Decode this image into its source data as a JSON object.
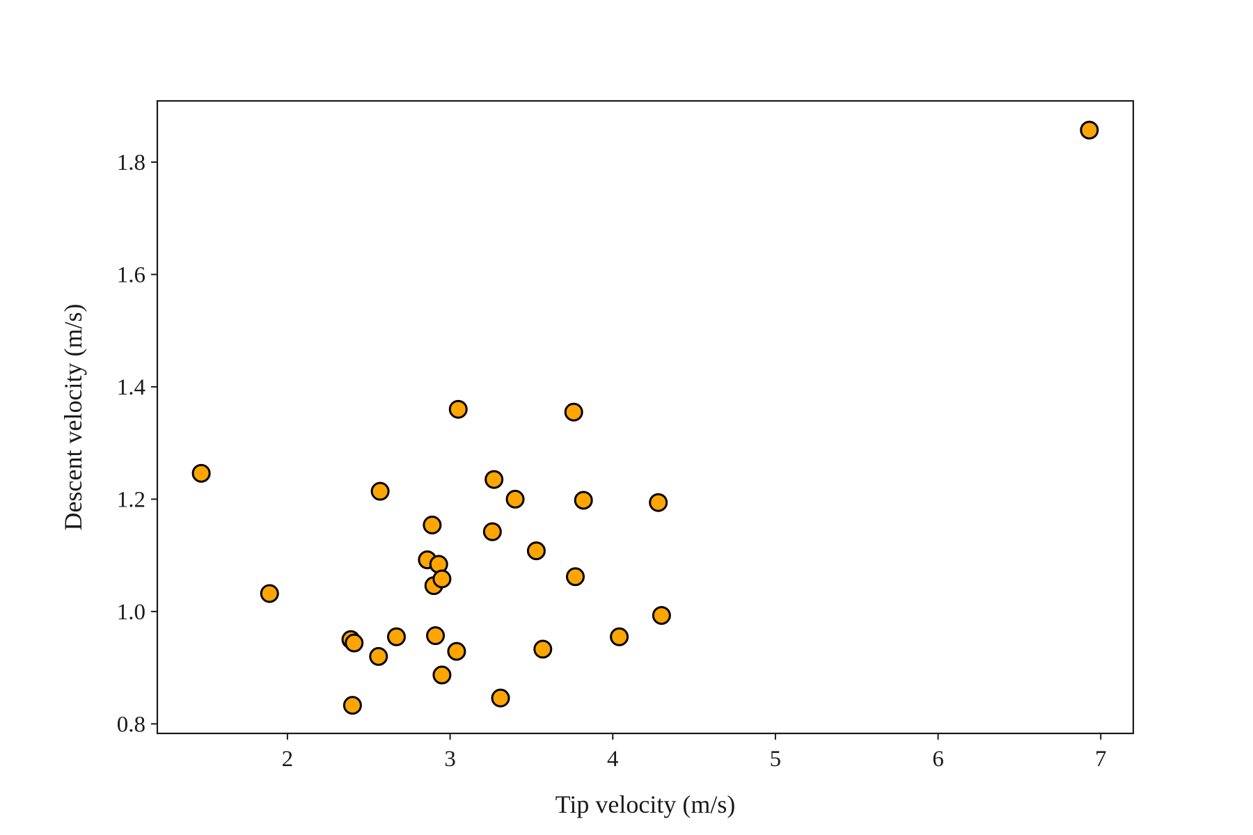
{
  "chart_data": {
    "type": "scatter",
    "title": "",
    "xlabel": "Tip velocity (m/s)",
    "ylabel": "Descent velocity (m/s)",
    "xlim": [
      1.2,
      7.2
    ],
    "ylim": [
      0.783,
      1.909
    ],
    "xticks": [
      2,
      3,
      4,
      5,
      6,
      7
    ],
    "xtick_labels": [
      "2",
      "3",
      "4",
      "5",
      "6",
      "7"
    ],
    "yticks": [
      0.8,
      1.0,
      1.2,
      1.4,
      1.6,
      1.8
    ],
    "ytick_labels": [
      "0.8",
      "1.0",
      "1.2",
      "1.4",
      "1.6",
      "1.8"
    ],
    "grid": false,
    "marker_color": "#FFA500",
    "marker_edge_color": "#000000",
    "series": [
      {
        "x": [
          1.47,
          1.89,
          2.39,
          2.4,
          2.41,
          2.56,
          2.57,
          2.67,
          2.86,
          2.89,
          2.9,
          2.91,
          2.93,
          2.95,
          2.95,
          3.04,
          3.05,
          3.26,
          3.27,
          3.31,
          3.4,
          3.53,
          3.57,
          3.76,
          3.77,
          3.82,
          4.04,
          4.28,
          4.3,
          6.93
        ],
        "y": [
          1.246,
          1.032,
          0.95,
          0.833,
          0.944,
          0.92,
          1.214,
          0.955,
          1.092,
          1.154,
          1.046,
          0.957,
          1.084,
          1.058,
          0.887,
          0.929,
          1.36,
          1.142,
          1.235,
          0.846,
          1.2,
          1.108,
          0.933,
          1.355,
          1.062,
          1.198,
          0.955,
          1.194,
          0.993,
          1.857
        ]
      }
    ]
  }
}
